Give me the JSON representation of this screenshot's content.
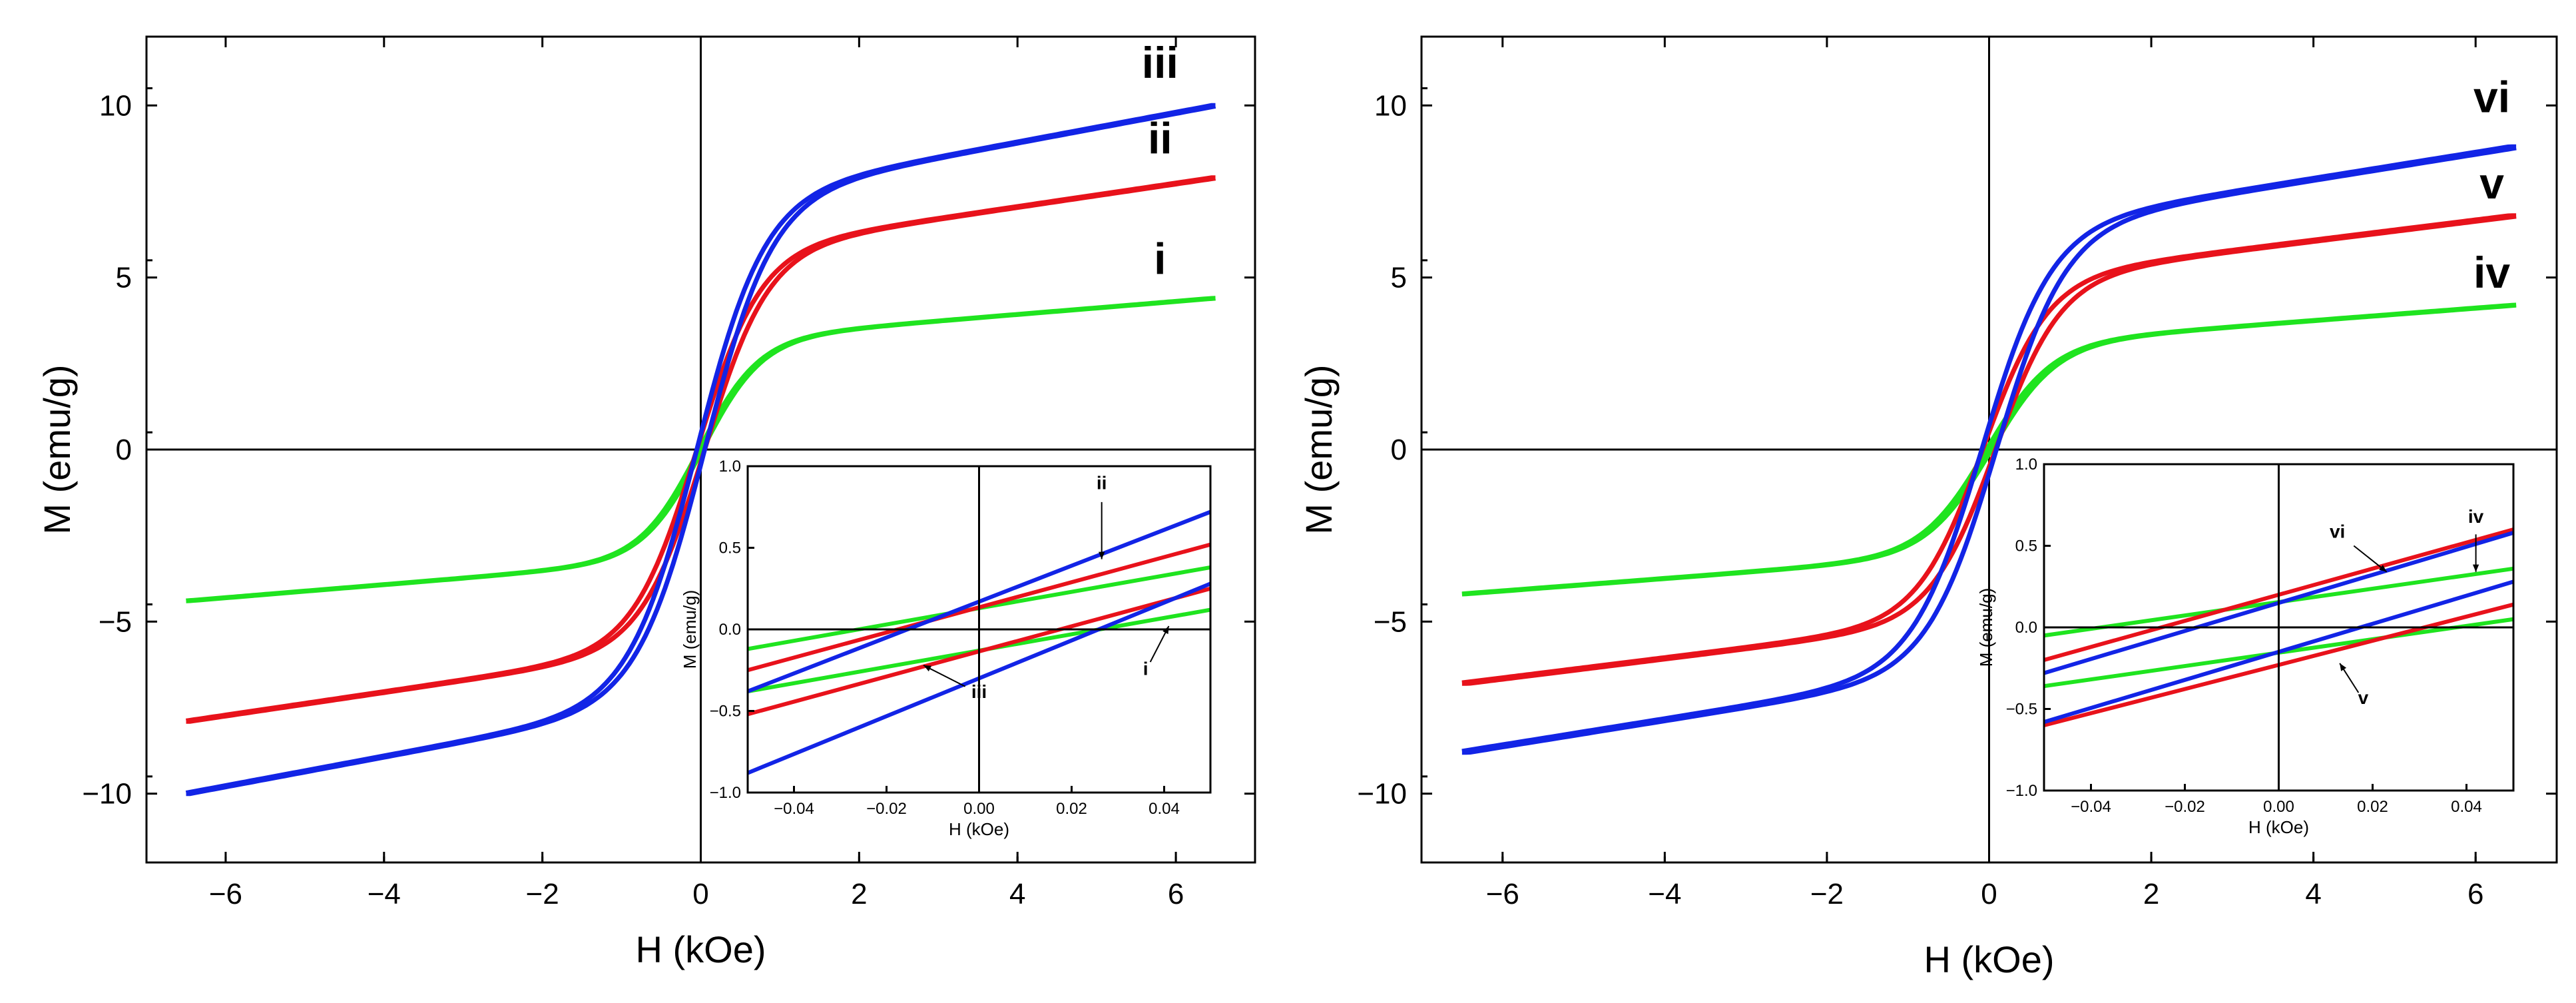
{
  "colors": {
    "green": "#1fe41f",
    "red": "#e8121b",
    "blue": "#1224e6",
    "axis": "#000000",
    "background": "#ffffff"
  },
  "chart_data": [
    {
      "type": "line",
      "title": "",
      "xlabel": "H (kOe)",
      "ylabel": "M (emu/g)",
      "xlim": [
        -7,
        7
      ],
      "ylim": [
        -12,
        12
      ],
      "xticks": [
        -6,
        -4,
        -2,
        0,
        2,
        4,
        6
      ],
      "yticks": [
        -10,
        -5,
        0,
        5,
        10
      ],
      "xtick_labels": [
        "−6",
        "−4",
        "−2",
        "0",
        "2",
        "4",
        "6"
      ],
      "ytick_labels": [
        "−10",
        "−5",
        "0",
        "5",
        "10"
      ],
      "series": [
        {
          "name": "i",
          "color": "green",
          "ms": 4.4,
          "hk": 0.75,
          "loop_width": 0.02
        },
        {
          "name": "ii",
          "color": "red",
          "ms": 7.9,
          "hk": 0.8,
          "loop_width": 0.05
        },
        {
          "name": "iii",
          "color": "blue",
          "ms": 10.0,
          "hk": 0.85,
          "loop_width": 0.05
        }
      ],
      "annotations": [
        {
          "text": "iii",
          "x": 5.8,
          "y": 10.8
        },
        {
          "text": "ii",
          "x": 5.8,
          "y": 8.6
        },
        {
          "text": "i",
          "x": 5.8,
          "y": 5.1
        }
      ],
      "inset": {
        "xlabel": "H (kOe)",
        "ylabel": "M (emu/g)",
        "xlim": [
          -0.05,
          0.05
        ],
        "ylim": [
          -1.0,
          1.0
        ],
        "xticks": [
          -0.04,
          -0.02,
          0.0,
          0.02,
          0.04
        ],
        "yticks": [
          -1.0,
          -0.5,
          0.0,
          0.5,
          1.0
        ],
        "xtick_labels": [
          "−0.04",
          "−0.02",
          "0.00",
          "0.02",
          "0.04"
        ],
        "ytick_labels": [
          "−1.0",
          "−0.5",
          "0.0",
          "0.5",
          "1.0"
        ],
        "series": [
          {
            "name": "green",
            "color": "green",
            "x": [
              -0.05,
              0.05
            ],
            "upper": [
              -0.12,
              0.38
            ],
            "lower": [
              -0.38,
              0.12
            ]
          },
          {
            "name": "red",
            "color": "red",
            "x": [
              -0.05,
              0.05
            ],
            "upper": [
              -0.25,
              0.52
            ],
            "lower": [
              -0.52,
              0.25
            ]
          },
          {
            "name": "blue",
            "color": "blue",
            "x": [
              -0.05,
              0.05
            ],
            "upper": [
              -0.38,
              0.72
            ],
            "lower": [
              -0.88,
              0.28
            ]
          }
        ],
        "annotations": [
          {
            "text": "ii",
            "x": 0.0265,
            "y": 0.86,
            "ax": 0.0265,
            "ay": 0.78,
            "tx": 0.0265,
            "ty": 0.43
          },
          {
            "text": "iii",
            "x": 0.0,
            "y": -0.42,
            "ax": -0.003,
            "ay": -0.35,
            "tx": -0.012,
            "ty": -0.22
          },
          {
            "text": "i",
            "x": 0.036,
            "y": -0.28,
            "ax": 0.037,
            "ay": -0.2,
            "tx": 0.041,
            "ty": 0.02
          }
        ]
      }
    },
    {
      "type": "line",
      "title": "",
      "xlabel": "H (kOe)",
      "ylabel": "M (emu/g)",
      "xlim": [
        -7,
        7
      ],
      "ylim": [
        -12,
        12
      ],
      "xticks": [
        -6,
        -4,
        -2,
        0,
        2,
        4,
        6
      ],
      "yticks": [
        -10,
        -5,
        0,
        5,
        10
      ],
      "xtick_labels": [
        "−6",
        "−4",
        "−2",
        "0",
        "2",
        "4",
        "6"
      ],
      "ytick_labels": [
        "−10",
        "−5",
        "0",
        "5",
        "10"
      ],
      "series": [
        {
          "name": "iv",
          "color": "green",
          "ms": 4.2,
          "hk": 0.8,
          "loop_width": 0.03
        },
        {
          "name": "v",
          "color": "red",
          "ms": 6.8,
          "hk": 0.8,
          "loop_width": 0.08
        },
        {
          "name": "vi",
          "color": "blue",
          "ms": 8.8,
          "hk": 0.85,
          "loop_width": 0.09
        }
      ],
      "annotations": [
        {
          "text": "vi",
          "x": 6.2,
          "y": 9.8
        },
        {
          "text": "v",
          "x": 6.2,
          "y": 7.3
        },
        {
          "text": "iv",
          "x": 6.2,
          "y": 4.7
        }
      ],
      "inset": {
        "xlabel": "H (kOe)",
        "ylabel": "M (emu/g)",
        "xlim": [
          -0.05,
          0.05
        ],
        "ylim": [
          -1.0,
          1.0
        ],
        "xticks": [
          -0.04,
          -0.02,
          0.0,
          0.02,
          0.04
        ],
        "yticks": [
          -1.0,
          -0.5,
          0.0,
          0.5,
          1.0
        ],
        "xtick_labels": [
          "−0.04",
          "−0.02",
          "0.00",
          "0.02",
          "0.04"
        ],
        "ytick_labels": [
          "−1.0",
          "−0.5",
          "0.0",
          "0.5",
          "1.0"
        ],
        "series": [
          {
            "name": "green",
            "color": "green",
            "x": [
              -0.05,
              0.05
            ],
            "upper": [
              -0.05,
              0.36
            ],
            "lower": [
              -0.36,
              0.05
            ]
          },
          {
            "name": "red",
            "color": "red",
            "x": [
              -0.05,
              0.05
            ],
            "upper": [
              -0.2,
              0.6
            ],
            "lower": [
              -0.6,
              0.14
            ]
          },
          {
            "name": "blue",
            "color": "blue",
            "x": [
              -0.05,
              0.05
            ],
            "upper": [
              -0.28,
              0.58
            ],
            "lower": [
              -0.58,
              0.28
            ]
          }
        ],
        "annotations": [
          {
            "text": "vi",
            "x": 0.0125,
            "y": 0.55,
            "ax": 0.016,
            "ay": 0.5,
            "tx": 0.023,
            "ty": 0.34
          },
          {
            "text": "iv",
            "x": 0.042,
            "y": 0.64,
            "ax": 0.042,
            "ay": 0.57,
            "tx": 0.042,
            "ty": 0.34
          },
          {
            "text": "v",
            "x": 0.018,
            "y": -0.47,
            "ax": 0.017,
            "ay": -0.4,
            "tx": 0.013,
            "ty": -0.22
          }
        ]
      }
    }
  ]
}
